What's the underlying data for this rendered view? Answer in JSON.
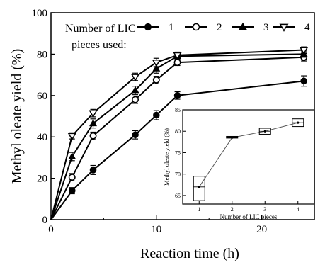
{
  "chart_data": [
    {
      "type": "line",
      "xlabel": "Reaction time (h)",
      "ylabel": "Methyl oleate yield (%)",
      "xlim": [
        0,
        25
      ],
      "ylim": [
        0,
        100
      ],
      "xticks": [
        "0",
        "10",
        "20"
      ],
      "yticks": [
        "0",
        "20",
        "40",
        "60",
        "80",
        "100"
      ],
      "grid": false,
      "legend_title": "Number of LIC pieces used:",
      "legend_placement": "top",
      "x": [
        0,
        2,
        4,
        8,
        10,
        12,
        24
      ],
      "series": [
        {
          "name": "1",
          "marker": "filled-circle",
          "values": [
            0,
            14,
            24,
            41,
            50.5,
            60,
            67
          ],
          "errors": [
            0,
            1.5,
            2.2,
            2,
            2.2,
            1.8,
            2.5
          ]
        },
        {
          "name": "2",
          "marker": "open-circle",
          "values": [
            0,
            20.5,
            40.5,
            58,
            67.5,
            76,
            78.5
          ],
          "errors": [
            0,
            1.8,
            1.8,
            1.8,
            1.8,
            1.5,
            1.8
          ]
        },
        {
          "name": "3",
          "marker": "filled-triangle",
          "values": [
            0,
            30.5,
            46.5,
            62.5,
            73,
            79,
            80
          ],
          "errors": [
            0,
            2,
            2.2,
            2,
            2.2,
            1.5,
            1.5
          ]
        },
        {
          "name": "4",
          "marker": "open-triangle-down",
          "values": [
            0,
            40.5,
            51.5,
            69,
            76,
            79.5,
            82
          ],
          "errors": [
            0,
            1.5,
            1.8,
            1.8,
            2,
            1.5,
            1.5
          ]
        }
      ]
    },
    {
      "type": "line",
      "placement": "inset-bottom-right",
      "xlabel": "Number of LIC pieces",
      "ylabel": "Methyl oleate yield (%)",
      "xlim": [
        0.5,
        4.5
      ],
      "ylim": [
        63,
        85
      ],
      "xticks": [
        "1",
        "2",
        "3",
        "4"
      ],
      "yticks": [
        "65",
        "70",
        "75",
        "80",
        "85"
      ],
      "grid": false,
      "x": [
        1,
        2,
        3,
        4
      ],
      "values": [
        67,
        78.5,
        80,
        82
      ],
      "box_low": [
        63.8,
        78.4,
        79.3,
        81.1
      ],
      "box_high": [
        69.5,
        78.8,
        80.7,
        82.9
      ]
    }
  ]
}
